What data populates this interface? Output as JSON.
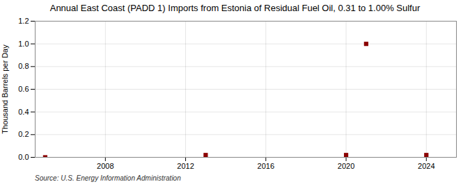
{
  "chart_data": {
    "type": "scatter",
    "title": "Annual East Coast (PADD 1) Imports from Estonia of Residual Fuel Oil, 0.31 to 1.00% Sulfur",
    "ylabel": "Thousand Barrels per Day",
    "source": "Source: U.S. Energy Information Administration",
    "x": [
      2005,
      2013,
      2020,
      2021,
      2024
    ],
    "values": [
      0.0,
      0.02,
      0.02,
      1.0,
      0.02
    ],
    "color": "#8b0000",
    "marker": "square",
    "xlim": [
      2004.5,
      2025.5
    ],
    "xticks": [
      2008,
      2012,
      2016,
      2020,
      2024
    ],
    "ylim": [
      0,
      1.2
    ],
    "yticks": [
      {
        "value": 0,
        "label": "0.0"
      },
      0.2,
      0.4,
      0.6,
      0.8,
      {
        "value": 1,
        "label": "1.0"
      },
      1.2
    ],
    "grid": true
  }
}
